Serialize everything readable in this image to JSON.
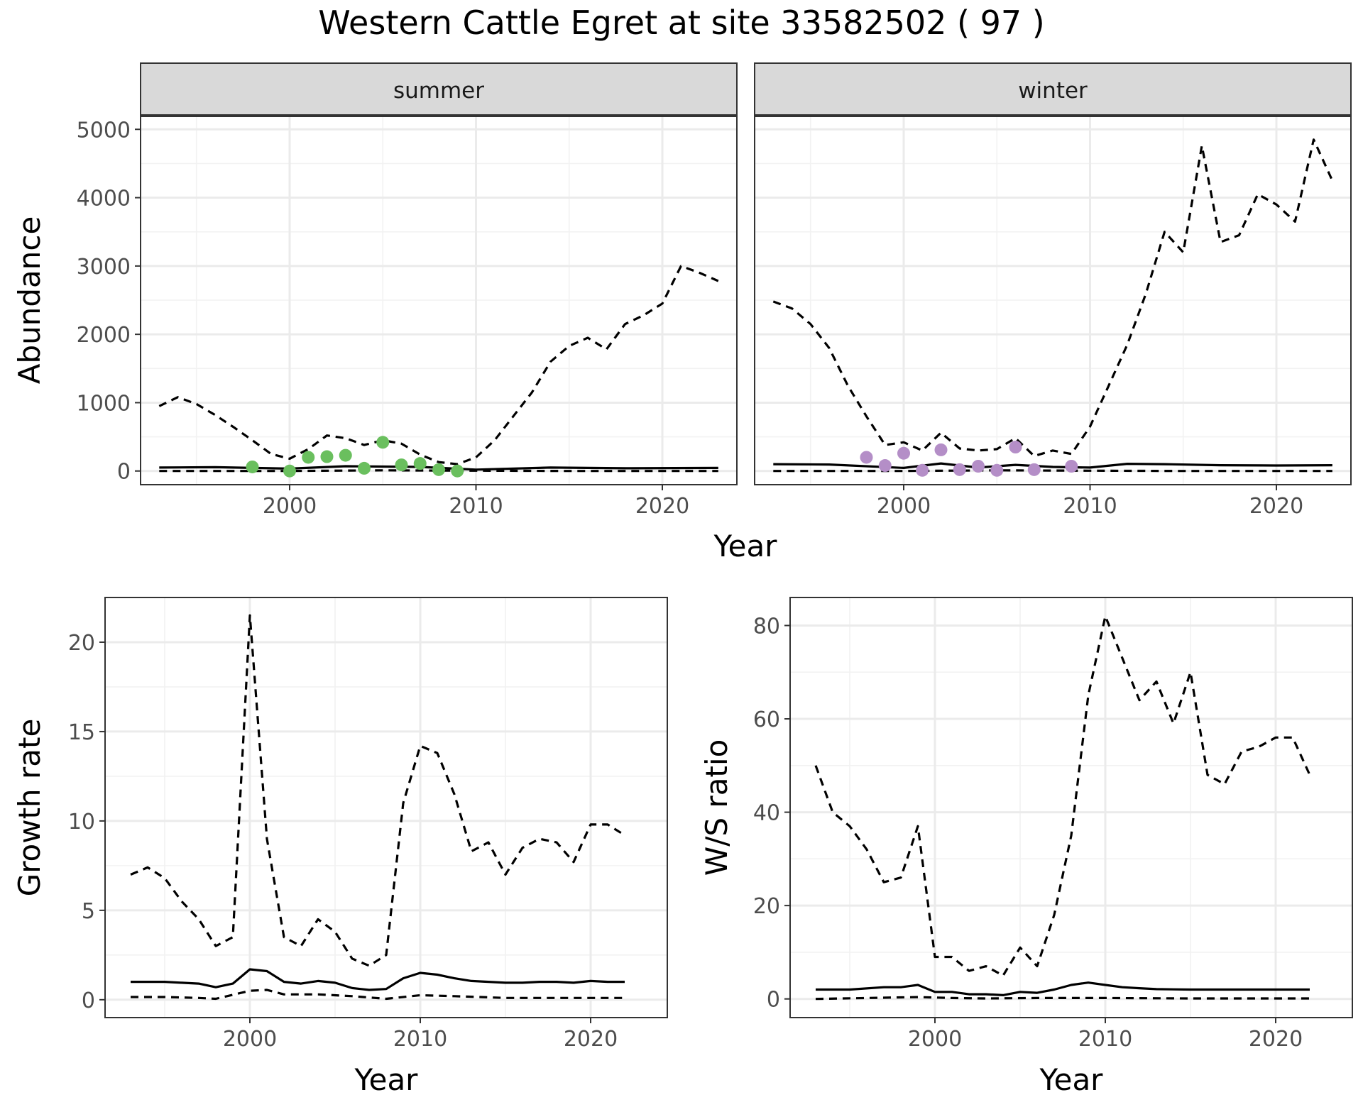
{
  "chart_data": {
    "title": "Western Cattle Egret at site 33582502 ( 97 )",
    "colors": {
      "summer_points": "#6abf5e",
      "winter_points": "#b48ec7",
      "lines": "#000000"
    },
    "facets": {
      "type": "line",
      "ylabel": "Abundance",
      "xlabel": "Year",
      "xlim": [
        1992,
        2024
      ],
      "ylim": [
        -200,
        5200
      ],
      "xticks": [
        2000,
        2010,
        2020
      ],
      "yticks": [
        0,
        1000,
        2000,
        3000,
        4000,
        5000
      ],
      "panels": [
        {
          "strip": "summer",
          "mean": {
            "x": [
              1993,
              1996,
              2000,
              2003,
              2005,
              2007,
              2010,
              2014,
              2018,
              2023
            ],
            "y": [
              50,
              55,
              35,
              70,
              65,
              60,
              20,
              50,
              40,
              45
            ]
          },
          "upper": {
            "x": [
              1993,
              1994,
              1995,
              1996,
              1997,
              1998,
              1999,
              2000,
              2001,
              2002,
              2003,
              2004,
              2005,
              2006,
              2007,
              2008,
              2009,
              2010,
              2011,
              2012,
              2013,
              2014,
              2015,
              2016,
              2017,
              2018,
              2019,
              2020,
              2021,
              2022,
              2023
            ],
            "y": [
              950,
              1080,
              980,
              820,
              640,
              450,
              250,
              180,
              320,
              520,
              480,
              380,
              450,
              400,
              240,
              130,
              100,
              200,
              450,
              800,
              1150,
              1600,
              1830,
              1950,
              1780,
              2150,
              2280,
              2450,
              3000,
              2900,
              2780
            ]
          },
          "lower": {
            "x": [
              1993,
              2000,
              2005,
              2010,
              2015,
              2020,
              2023
            ],
            "y": [
              0,
              0,
              10,
              5,
              0,
              0,
              0
            ]
          },
          "observed": {
            "x": [
              1998,
              2000,
              2001,
              2002,
              2003,
              2004,
              2005,
              2006,
              2007,
              2008,
              2009
            ],
            "y": [
              60,
              0,
              200,
              210,
              230,
              40,
              420,
              90,
              110,
              20,
              0
            ]
          }
        },
        {
          "strip": "winter",
          "mean": {
            "x": [
              1993,
              1996,
              2000,
              2002,
              2004,
              2006,
              2008,
              2010,
              2012,
              2014,
              2017,
              2020,
              2023
            ],
            "y": [
              100,
              95,
              45,
              110,
              50,
              90,
              60,
              50,
              105,
              100,
              85,
              80,
              85
            ]
          },
          "upper": {
            "x": [
              1993,
              1994,
              1995,
              1996,
              1997,
              1998,
              1999,
              2000,
              2001,
              2002,
              2003,
              2004,
              2005,
              2006,
              2007,
              2008,
              2009,
              2010,
              2011,
              2012,
              2013,
              2014,
              2015,
              2016,
              2017,
              2018,
              2019,
              2020,
              2021,
              2022,
              2023
            ],
            "y": [
              2480,
              2380,
              2150,
              1800,
              1250,
              800,
              380,
              420,
              300,
              560,
              330,
              300,
              320,
              480,
              220,
              300,
              250,
              650,
              1250,
              1850,
              2600,
              3500,
              3200,
              4760,
              3350,
              3450,
              4050,
              3900,
              3650,
              4850,
              4250
            ]
          },
          "lower": {
            "x": [
              1993,
              2000,
              2005,
              2010,
              2015,
              2020,
              2023
            ],
            "y": [
              0,
              0,
              10,
              5,
              0,
              0,
              0
            ]
          },
          "observed": {
            "x": [
              1998,
              1999,
              2000,
              2001,
              2002,
              2003,
              2004,
              2005,
              2006,
              2007,
              2009
            ],
            "y": [
              200,
              80,
              260,
              10,
              310,
              20,
              70,
              10,
              350,
              20,
              70
            ]
          }
        }
      ]
    },
    "growth": {
      "type": "line",
      "ylabel": "Growth rate",
      "xlabel": "Year",
      "xlim": [
        1991.5,
        2024.5
      ],
      "ylim": [
        -1,
        22.5
      ],
      "xticks": [
        2000,
        2010,
        2020
      ],
      "yticks": [
        0,
        5,
        10,
        15,
        20
      ],
      "mean": {
        "x": [
          1993,
          1994,
          1995,
          1996,
          1997,
          1998,
          1999,
          2000,
          2001,
          2002,
          2003,
          2004,
          2005,
          2006,
          2007,
          2008,
          2009,
          2010,
          2011,
          2012,
          2013,
          2014,
          2015,
          2016,
          2017,
          2018,
          2019,
          2020,
          2021,
          2022
        ],
        "y": [
          1.0,
          1.0,
          1.0,
          0.95,
          0.9,
          0.7,
          0.9,
          1.7,
          1.6,
          1.0,
          0.9,
          1.05,
          0.95,
          0.65,
          0.55,
          0.6,
          1.2,
          1.5,
          1.4,
          1.2,
          1.05,
          1.0,
          0.95,
          0.95,
          1.0,
          1.0,
          0.95,
          1.05,
          1.0,
          1.0
        ]
      },
      "upper": {
        "x": [
          1993,
          1994,
          1995,
          1996,
          1997,
          1998,
          1999,
          2000,
          2001,
          2002,
          2003,
          2004,
          2005,
          2006,
          2007,
          2008,
          2009,
          2010,
          2011,
          2012,
          2013,
          2014,
          2015,
          2016,
          2017,
          2018,
          2019,
          2020,
          2021,
          2022
        ],
        "y": [
          7.0,
          7.4,
          6.8,
          5.5,
          4.5,
          3.0,
          3.5,
          21.5,
          9.0,
          3.5,
          3.0,
          4.5,
          3.8,
          2.3,
          1.9,
          2.5,
          11.0,
          14.2,
          13.8,
          11.5,
          8.3,
          8.8,
          7.0,
          8.5,
          9.0,
          8.8,
          7.7,
          9.8,
          9.8,
          9.2
        ]
      },
      "lower": {
        "x": [
          1993,
          1995,
          1997,
          1998,
          2000,
          2001,
          2002,
          2004,
          2006,
          2008,
          2010,
          2012,
          2015,
          2018,
          2022
        ],
        "y": [
          0.15,
          0.15,
          0.1,
          0.05,
          0.5,
          0.55,
          0.3,
          0.3,
          0.2,
          0.05,
          0.25,
          0.2,
          0.1,
          0.1,
          0.1
        ]
      }
    },
    "ratio": {
      "type": "line",
      "ylabel": "W/S ratio",
      "xlabel": "Year",
      "xlim": [
        1991.5,
        2024.5
      ],
      "ylim": [
        -4,
        86
      ],
      "xticks": [
        2000,
        2010,
        2020
      ],
      "yticks": [
        0,
        20,
        40,
        60,
        80
      ],
      "mean": {
        "x": [
          1993,
          1995,
          1997,
          1998,
          1999,
          2000,
          2001,
          2002,
          2003,
          2004,
          2005,
          2006,
          2007,
          2008,
          2009,
          2010,
          2011,
          2012,
          2013,
          2015,
          2018,
          2020,
          2022
        ],
        "y": [
          2,
          2,
          2.5,
          2.5,
          3,
          1.5,
          1.5,
          1,
          1,
          0.8,
          1.5,
          1.3,
          2,
          3,
          3.5,
          3,
          2.5,
          2.3,
          2.1,
          2,
          2,
          2,
          2
        ]
      },
      "upper": {
        "x": [
          1993,
          1994,
          1995,
          1996,
          1997,
          1998,
          1999,
          2000,
          2001,
          2002,
          2003,
          2004,
          2005,
          2006,
          2007,
          2008,
          2009,
          2010,
          2011,
          2012,
          2013,
          2014,
          2015,
          2016,
          2017,
          2018,
          2019,
          2020,
          2021,
          2022
        ],
        "y": [
          50,
          40,
          37,
          32,
          25,
          26,
          37,
          9,
          9,
          6,
          7,
          5,
          11,
          7,
          18,
          35,
          65,
          82,
          73,
          64,
          68,
          59,
          70,
          48,
          46,
          53,
          54,
          56,
          56,
          48
        ]
      },
      "lower": {
        "x": [
          1993,
          1999,
          2001,
          2003,
          2006,
          2010,
          2015,
          2022
        ],
        "y": [
          0,
          0.4,
          0.2,
          0.1,
          0.2,
          0.2,
          0.1,
          0.1
        ]
      }
    }
  }
}
